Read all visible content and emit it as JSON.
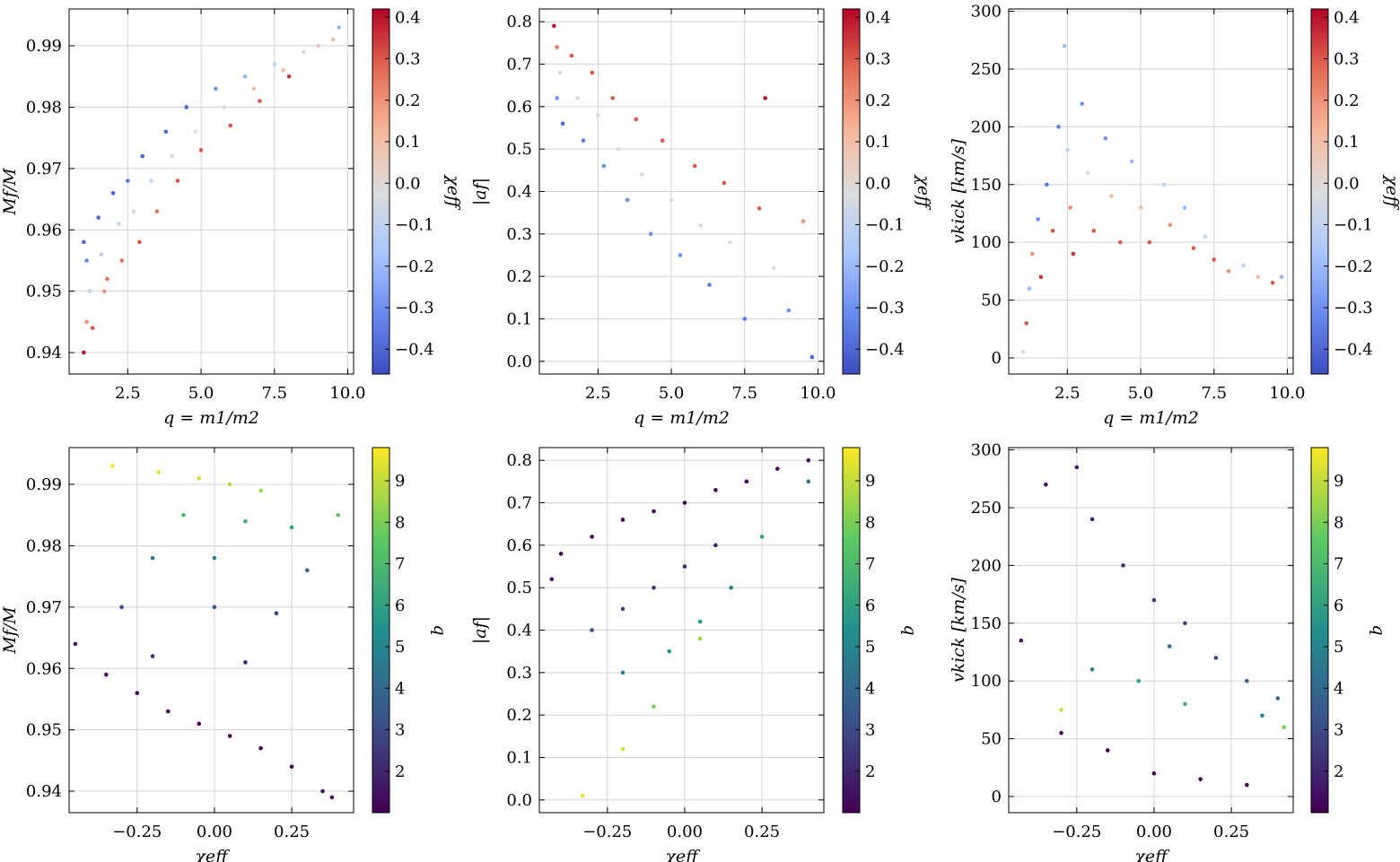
{
  "colors": {
    "coolwarm": [
      "#3b4cc0",
      "#6a8bef",
      "#aac7fd",
      "#dddddd",
      "#f7b89c",
      "#e36b53",
      "#b40426"
    ],
    "viridis": [
      "#440154",
      "#3b528b",
      "#21908d",
      "#5dc962",
      "#fde725"
    ]
  },
  "chart_data": [
    {
      "id": "p1",
      "type": "scatter",
      "xlabel": "q = m1/m2",
      "ylabel": "Mf/M",
      "xlim": [
        0.5,
        10.2
      ],
      "ylim": [
        0.9365,
        0.996
      ],
      "xticks": [
        2.5,
        5.0,
        7.5,
        10.0
      ],
      "xtick_labels": [
        "2.5",
        "5.0",
        "7.5",
        "10.0"
      ],
      "yticks": [
        0.94,
        0.95,
        0.96,
        0.97,
        0.98,
        0.99
      ],
      "ytick_labels": [
        "0.94",
        "0.95",
        "0.96",
        "0.97",
        "0.98",
        "0.99"
      ],
      "grid": true,
      "colorbar": {
        "label": "χeff",
        "cmap": "coolwarm",
        "range": [
          -0.46,
          0.42
        ],
        "ticks": [
          -0.4,
          -0.3,
          -0.2,
          -0.1,
          0.0,
          0.1,
          0.2,
          0.3,
          0.4
        ],
        "tick_labels": [
          "−0.4",
          "−0.3",
          "−0.2",
          "−0.1",
          "0.0",
          "0.1",
          "0.2",
          "0.3",
          "0.4"
        ]
      },
      "points": [
        [
          1.0,
          0.958,
          -0.4
        ],
        [
          1.1,
          0.955,
          -0.3
        ],
        [
          1.2,
          0.95,
          -0.1
        ],
        [
          1.1,
          0.945,
          0.2
        ],
        [
          1.0,
          0.94,
          0.4
        ],
        [
          1.3,
          0.944,
          0.3
        ],
        [
          1.5,
          0.962,
          -0.4
        ],
        [
          1.6,
          0.956,
          -0.1
        ],
        [
          1.7,
          0.95,
          0.2
        ],
        [
          1.8,
          0.952,
          0.25
        ],
        [
          2.0,
          0.966,
          -0.4
        ],
        [
          2.2,
          0.961,
          -0.1
        ],
        [
          2.3,
          0.955,
          0.25
        ],
        [
          2.5,
          0.968,
          -0.35
        ],
        [
          2.7,
          0.963,
          0.0
        ],
        [
          2.9,
          0.958,
          0.3
        ],
        [
          3.0,
          0.972,
          -0.4
        ],
        [
          3.3,
          0.968,
          -0.1
        ],
        [
          3.5,
          0.963,
          0.25
        ],
        [
          3.8,
          0.976,
          -0.4
        ],
        [
          4.0,
          0.972,
          0.0
        ],
        [
          4.2,
          0.968,
          0.3
        ],
        [
          4.5,
          0.98,
          -0.4
        ],
        [
          4.8,
          0.976,
          0.0
        ],
        [
          5.0,
          0.973,
          0.3
        ],
        [
          5.5,
          0.983,
          -0.3
        ],
        [
          5.8,
          0.98,
          0.0
        ],
        [
          6.0,
          0.977,
          0.3
        ],
        [
          6.5,
          0.985,
          -0.2
        ],
        [
          6.8,
          0.983,
          0.1
        ],
        [
          7.0,
          0.981,
          0.3
        ],
        [
          7.5,
          0.987,
          -0.1
        ],
        [
          7.8,
          0.986,
          0.1
        ],
        [
          8.0,
          0.985,
          0.35
        ],
        [
          8.5,
          0.989,
          -0.05
        ],
        [
          9.0,
          0.99,
          0.05
        ],
        [
          9.5,
          0.991,
          0.1
        ],
        [
          9.7,
          0.993,
          -0.2
        ]
      ]
    },
    {
      "id": "p2",
      "type": "scatter",
      "xlabel": "q = m1/m2",
      "ylabel": "|af|",
      "xlim": [
        0.5,
        10.2
      ],
      "ylim": [
        -0.03,
        0.83
      ],
      "xticks": [
        2.5,
        5.0,
        7.5,
        10.0
      ],
      "xtick_labels": [
        "2.5",
        "5.0",
        "7.5",
        "10.0"
      ],
      "yticks": [
        0.0,
        0.1,
        0.2,
        0.3,
        0.4,
        0.5,
        0.6,
        0.7,
        0.8
      ],
      "ytick_labels": [
        "0.0",
        "0.1",
        "0.2",
        "0.3",
        "0.4",
        "0.5",
        "0.6",
        "0.7",
        "0.8"
      ],
      "grid": true,
      "colorbar": {
        "label": "χeff",
        "cmap": "coolwarm",
        "range": [
          -0.46,
          0.42
        ],
        "ticks": [
          -0.4,
          -0.3,
          -0.2,
          -0.1,
          0.0,
          0.1,
          0.2,
          0.3,
          0.4
        ],
        "tick_labels": [
          "−0.4",
          "−0.3",
          "−0.2",
          "−0.1",
          "0.0",
          "0.1",
          "0.2",
          "0.3",
          "0.4"
        ]
      },
      "points": [
        [
          1.0,
          0.79,
          0.4
        ],
        [
          1.1,
          0.74,
          0.25
        ],
        [
          1.2,
          0.68,
          0.0
        ],
        [
          1.1,
          0.62,
          -0.3
        ],
        [
          1.3,
          0.56,
          -0.4
        ],
        [
          1.6,
          0.72,
          0.3
        ],
        [
          1.8,
          0.62,
          0.0
        ],
        [
          2.0,
          0.52,
          -0.35
        ],
        [
          2.3,
          0.68,
          0.3
        ],
        [
          2.5,
          0.58,
          0.0
        ],
        [
          2.7,
          0.46,
          -0.3
        ],
        [
          3.0,
          0.62,
          0.3
        ],
        [
          3.2,
          0.5,
          0.0
        ],
        [
          3.5,
          0.38,
          -0.3
        ],
        [
          3.8,
          0.57,
          0.3
        ],
        [
          4.0,
          0.44,
          0.0
        ],
        [
          4.3,
          0.3,
          -0.3
        ],
        [
          4.7,
          0.52,
          0.3
        ],
        [
          5.0,
          0.38,
          0.0
        ],
        [
          5.3,
          0.25,
          -0.3
        ],
        [
          5.8,
          0.46,
          0.3
        ],
        [
          6.0,
          0.32,
          0.0
        ],
        [
          6.3,
          0.18,
          -0.35
        ],
        [
          6.8,
          0.42,
          0.3
        ],
        [
          7.0,
          0.28,
          0.0
        ],
        [
          7.5,
          0.1,
          -0.35
        ],
        [
          8.0,
          0.36,
          0.3
        ],
        [
          8.2,
          0.62,
          0.4
        ],
        [
          8.5,
          0.22,
          0.0
        ],
        [
          9.0,
          0.12,
          -0.3
        ],
        [
          9.5,
          0.33,
          0.2
        ],
        [
          9.8,
          0.01,
          -0.4
        ]
      ]
    },
    {
      "id": "p3",
      "type": "scatter",
      "xlabel": "q = m1/m2",
      "ylabel": "vkick [km/s]",
      "xlim": [
        0.5,
        10.2
      ],
      "ylim": [
        -14,
        302
      ],
      "xticks": [
        2.5,
        5.0,
        7.5,
        10.0
      ],
      "xtick_labels": [
        "2.5",
        "5.0",
        "7.5",
        "10.0"
      ],
      "yticks": [
        0,
        50,
        100,
        150,
        200,
        250,
        300
      ],
      "ytick_labels": [
        "0",
        "50",
        "100",
        "150",
        "200",
        "250",
        "300"
      ],
      "grid": true,
      "colorbar": {
        "label": "χeff",
        "cmap": "coolwarm",
        "range": [
          -0.46,
          0.42
        ],
        "ticks": [
          -0.4,
          -0.3,
          -0.2,
          -0.1,
          0.0,
          0.1,
          0.2,
          0.3,
          0.4
        ],
        "tick_labels": [
          "−0.4",
          "−0.3",
          "−0.2",
          "−0.1",
          "0.0",
          "0.1",
          "0.2",
          "0.3",
          "0.4"
        ]
      },
      "points": [
        [
          1.0,
          5,
          0.0
        ],
        [
          1.1,
          30,
          0.3
        ],
        [
          1.2,
          60,
          -0.2
        ],
        [
          1.3,
          90,
          0.2
        ],
        [
          1.5,
          120,
          -0.3
        ],
        [
          1.6,
          70,
          0.35
        ],
        [
          1.8,
          150,
          -0.35
        ],
        [
          2.0,
          110,
          0.3
        ],
        [
          2.2,
          200,
          -0.35
        ],
        [
          2.4,
          270,
          -0.2
        ],
        [
          2.5,
          180,
          -0.1
        ],
        [
          2.6,
          130,
          0.2
        ],
        [
          2.7,
          90,
          0.35
        ],
        [
          3.0,
          220,
          -0.3
        ],
        [
          3.2,
          160,
          0.0
        ],
        [
          3.4,
          110,
          0.3
        ],
        [
          3.8,
          190,
          -0.3
        ],
        [
          4.0,
          140,
          0.1
        ],
        [
          4.3,
          100,
          0.3
        ],
        [
          4.7,
          170,
          -0.2
        ],
        [
          5.0,
          130,
          0.1
        ],
        [
          5.3,
          100,
          0.3
        ],
        [
          5.8,
          150,
          -0.1
        ],
        [
          6.0,
          115,
          0.2
        ],
        [
          6.5,
          130,
          -0.2
        ],
        [
          6.8,
          95,
          0.3
        ],
        [
          7.2,
          105,
          -0.1
        ],
        [
          7.5,
          85,
          0.3
        ],
        [
          8.0,
          75,
          0.2
        ],
        [
          8.5,
          80,
          -0.1
        ],
        [
          9.0,
          70,
          0.1
        ],
        [
          9.5,
          65,
          0.3
        ],
        [
          9.8,
          70,
          -0.2
        ]
      ]
    },
    {
      "id": "p4",
      "type": "scatter",
      "xlabel": "χeff",
      "ylabel": "Mf/M",
      "xlim": [
        -0.47,
        0.45
      ],
      "ylim": [
        0.9365,
        0.996
      ],
      "xticks": [
        -0.25,
        0.0,
        0.25
      ],
      "xtick_labels": [
        "−0.25",
        "0.00",
        "0.25"
      ],
      "yticks": [
        0.94,
        0.95,
        0.96,
        0.97,
        0.98,
        0.99
      ],
      "ytick_labels": [
        "0.94",
        "0.95",
        "0.96",
        "0.97",
        "0.98",
        "0.99"
      ],
      "grid": true,
      "colorbar": {
        "label": "q",
        "cmap": "viridis",
        "range": [
          1.0,
          9.8
        ],
        "ticks": [
          2,
          3,
          4,
          5,
          6,
          7,
          8,
          9
        ],
        "tick_labels": [
          "2",
          "3",
          "4",
          "5",
          "6",
          "7",
          "8",
          "9"
        ]
      },
      "points": [
        [
          -0.45,
          0.964,
          1.5
        ],
        [
          -0.35,
          0.959,
          1.2
        ],
        [
          -0.25,
          0.956,
          1.1
        ],
        [
          -0.15,
          0.953,
          1.1
        ],
        [
          -0.05,
          0.951,
          1.0
        ],
        [
          0.05,
          0.949,
          1.0
        ],
        [
          0.15,
          0.947,
          1.0
        ],
        [
          0.25,
          0.944,
          1.1
        ],
        [
          0.35,
          0.94,
          1.2
        ],
        [
          0.38,
          0.939,
          1.3
        ],
        [
          -0.33,
          0.993,
          9.7
        ],
        [
          -0.18,
          0.992,
          9.5
        ],
        [
          -0.05,
          0.991,
          9.2
        ],
        [
          0.05,
          0.99,
          8.8
        ],
        [
          0.15,
          0.989,
          8.5
        ],
        [
          -0.1,
          0.985,
          7.0
        ],
        [
          0.1,
          0.984,
          6.5
        ],
        [
          0.25,
          0.983,
          6.0
        ],
        [
          -0.2,
          0.978,
          4.5
        ],
        [
          0.0,
          0.978,
          4.8
        ],
        [
          0.3,
          0.976,
          4.0
        ],
        [
          -0.3,
          0.97,
          3.0
        ],
        [
          0.0,
          0.97,
          3.2
        ],
        [
          0.2,
          0.969,
          2.8
        ],
        [
          -0.2,
          0.962,
          2.2
        ],
        [
          0.1,
          0.961,
          2.0
        ],
        [
          0.4,
          0.985,
          7.5
        ]
      ]
    },
    {
      "id": "p5",
      "type": "scatter",
      "xlabel": "χeff",
      "ylabel": "|af|",
      "xlim": [
        -0.47,
        0.45
      ],
      "ylim": [
        -0.03,
        0.83
      ],
      "xticks": [
        -0.25,
        0.0,
        0.25
      ],
      "xtick_labels": [
        "−0.25",
        "0.00",
        "0.25"
      ],
      "yticks": [
        0.0,
        0.1,
        0.2,
        0.3,
        0.4,
        0.5,
        0.6,
        0.7,
        0.8
      ],
      "ytick_labels": [
        "0.0",
        "0.1",
        "0.2",
        "0.3",
        "0.4",
        "0.5",
        "0.6",
        "0.7",
        "0.8"
      ],
      "grid": true,
      "colorbar": {
        "label": "q",
        "cmap": "viridis",
        "range": [
          1.0,
          9.8
        ],
        "ticks": [
          2,
          3,
          4,
          5,
          6,
          7,
          8,
          9
        ],
        "tick_labels": [
          "2",
          "3",
          "4",
          "5",
          "6",
          "7",
          "8",
          "9"
        ]
      },
      "points": [
        [
          -0.43,
          0.52,
          1.5
        ],
        [
          -0.4,
          0.58,
          1.1
        ],
        [
          -0.3,
          0.62,
          1.0
        ],
        [
          -0.2,
          0.66,
          1.0
        ],
        [
          -0.1,
          0.68,
          1.0
        ],
        [
          0.0,
          0.7,
          1.0
        ],
        [
          0.1,
          0.73,
          1.0
        ],
        [
          0.2,
          0.75,
          1.0
        ],
        [
          0.3,
          0.78,
          1.0
        ],
        [
          0.4,
          0.8,
          1.2
        ],
        [
          -0.3,
          0.4,
          3.0
        ],
        [
          -0.2,
          0.45,
          2.8
        ],
        [
          -0.1,
          0.5,
          2.5
        ],
        [
          0.0,
          0.55,
          2.2
        ],
        [
          0.1,
          0.6,
          2.0
        ],
        [
          -0.2,
          0.3,
          5.0
        ],
        [
          -0.05,
          0.35,
          5.5
        ],
        [
          0.05,
          0.42,
          5.8
        ],
        [
          0.15,
          0.5,
          5.0
        ],
        [
          -0.33,
          0.01,
          9.5
        ],
        [
          -0.2,
          0.12,
          9.0
        ],
        [
          -0.1,
          0.22,
          8.0
        ],
        [
          0.05,
          0.38,
          8.5
        ],
        [
          0.25,
          0.62,
          6.0
        ],
        [
          0.4,
          0.75,
          4.5
        ]
      ]
    },
    {
      "id": "p6",
      "type": "scatter",
      "xlabel": "χeff",
      "ylabel": "vkick [km/s]",
      "xlim": [
        -0.47,
        0.45
      ],
      "ylim": [
        -14,
        302
      ],
      "xticks": [
        -0.25,
        0.0,
        0.25
      ],
      "xtick_labels": [
        "−0.25",
        "0.00",
        "0.25"
      ],
      "yticks": [
        0,
        50,
        100,
        150,
        200,
        250,
        300
      ],
      "ytick_labels": [
        "0",
        "50",
        "100",
        "150",
        "200",
        "250",
        "300"
      ],
      "grid": true,
      "colorbar": {
        "label": "q",
        "cmap": "viridis",
        "range": [
          1.0,
          9.8
        ],
        "ticks": [
          2,
          3,
          4,
          5,
          6,
          7,
          8,
          9
        ],
        "tick_labels": [
          "2",
          "3",
          "4",
          "5",
          "6",
          "7",
          "8",
          "9"
        ]
      },
      "points": [
        [
          -0.43,
          135,
          1.5
        ],
        [
          -0.35,
          270,
          1.5
        ],
        [
          -0.25,
          285,
          1.8
        ],
        [
          -0.2,
          240,
          2.0
        ],
        [
          -0.1,
          200,
          2.2
        ],
        [
          0.0,
          170,
          2.5
        ],
        [
          0.1,
          150,
          2.8
        ],
        [
          0.2,
          120,
          3.0
        ],
        [
          0.3,
          100,
          3.5
        ],
        [
          0.4,
          85,
          4.0
        ],
        [
          -0.3,
          55,
          1.2
        ],
        [
          -0.15,
          40,
          1.1
        ],
        [
          0.0,
          20,
          1.0
        ],
        [
          0.15,
          15,
          1.0
        ],
        [
          0.3,
          10,
          1.1
        ],
        [
          -0.2,
          110,
          5.0
        ],
        [
          -0.05,
          100,
          6.0
        ],
        [
          0.1,
          80,
          6.5
        ],
        [
          0.35,
          70,
          5.0
        ],
        [
          -0.3,
          75,
          9.0
        ],
        [
          0.42,
          60,
          8.0
        ],
        [
          0.05,
          130,
          4.0
        ]
      ]
    }
  ]
}
